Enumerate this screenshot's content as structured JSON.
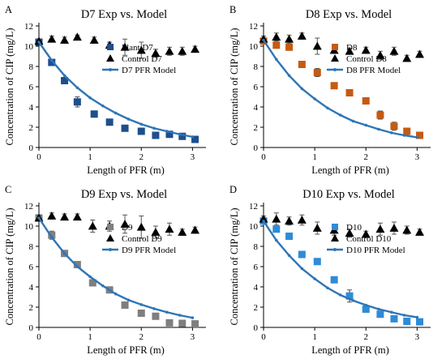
{
  "chart_data": [
    {
      "type": "scatter",
      "panel_letter": "A",
      "title": "D7 Exp vs. Model",
      "xlabel": "Length of PFR (m)",
      "ylabel": "Concentration of CIP (mg/L)",
      "xlim": [
        0,
        3.2
      ],
      "ylim": [
        0,
        12
      ],
      "xticks": [
        0,
        1,
        2,
        3
      ],
      "yticks": [
        0,
        2,
        4,
        6,
        8,
        10,
        12
      ],
      "legend_position": "right",
      "series": [
        {
          "name": "Plant D7",
          "kind": "scatter",
          "marker": "square",
          "color": "#1f4e8c",
          "x": [
            0,
            0.25,
            0.5,
            0.75,
            1.08,
            1.38,
            1.68,
            2.0,
            2.28,
            2.55,
            2.8,
            3.05
          ],
          "y": [
            10.4,
            8.4,
            6.6,
            4.5,
            3.3,
            2.5,
            1.9,
            1.6,
            1.2,
            1.3,
            1.1,
            0.8
          ],
          "error": [
            0.2,
            0.2,
            0.2,
            0.5,
            0.2,
            0.2,
            0.2,
            0.3,
            0.2,
            0.15,
            0.15,
            0.15
          ]
        },
        {
          "name": "Control D7",
          "kind": "scatter",
          "marker": "triangle",
          "color": "#000000",
          "x": [
            0,
            0.25,
            0.5,
            0.75,
            1.08,
            1.38,
            1.68,
            2.0,
            2.28,
            2.55,
            2.8,
            3.05
          ],
          "y": [
            10.5,
            10.7,
            10.6,
            10.9,
            10.6,
            10.1,
            9.9,
            9.6,
            9.3,
            9.5,
            9.5,
            9.7
          ],
          "error": [
            0.2,
            0.3,
            0.3,
            0.2,
            0.3,
            0.3,
            0.8,
            0.8,
            0.4,
            0.4,
            0.4,
            0.3
          ]
        },
        {
          "name": "D7 PFR Model",
          "kind": "line",
          "color": "#2e75b6",
          "marker": "dot",
          "x": [
            0,
            0.25,
            0.5,
            0.75,
            1.0,
            1.25,
            1.5,
            1.75,
            2.0,
            2.25,
            2.5,
            2.75,
            3.0
          ],
          "y": [
            10.4,
            8.6,
            7.1,
            5.9,
            4.9,
            4.1,
            3.4,
            2.8,
            2.3,
            1.9,
            1.6,
            1.3,
            1.05
          ]
        }
      ]
    },
    {
      "type": "scatter",
      "panel_letter": "B",
      "title": "D8 Exp vs. Model",
      "xlabel": "Length of PFR (m)",
      "ylabel": "Concentration of CIP (mg/L)",
      "xlim": [
        0,
        3.2
      ],
      "ylim": [
        0,
        12
      ],
      "xticks": [
        0,
        1,
        2,
        3
      ],
      "yticks": [
        0,
        2,
        4,
        6,
        8,
        10,
        12
      ],
      "legend_position": "right",
      "series": [
        {
          "name": "D8",
          "kind": "scatter",
          "marker": "square",
          "color": "#c55a11",
          "x": [
            0,
            0.25,
            0.5,
            0.75,
            1.05,
            1.38,
            1.68,
            2.0,
            2.28,
            2.55,
            2.8,
            3.05
          ],
          "y": [
            10.5,
            10.1,
            9.9,
            8.2,
            7.4,
            6.1,
            5.4,
            4.6,
            3.2,
            2.1,
            1.6,
            1.2
          ],
          "error": [
            0.3,
            0.2,
            0.2,
            0.2,
            0.4,
            0.2,
            0.2,
            0.2,
            0.4,
            0.4,
            0.3,
            0.3
          ]
        },
        {
          "name": "Control D8",
          "kind": "scatter",
          "marker": "triangle",
          "color": "#000000",
          "x": [
            0,
            0.25,
            0.5,
            0.75,
            1.05,
            1.38,
            1.68,
            2.0,
            2.28,
            2.55,
            2.8,
            3.05
          ],
          "y": [
            10.7,
            10.9,
            10.7,
            11.0,
            10.0,
            9.6,
            9.5,
            9.6,
            9.1,
            9.5,
            8.8,
            9.2
          ],
          "error": [
            0.3,
            0.4,
            0.4,
            0.3,
            0.8,
            0.3,
            0.3,
            0.3,
            0.4,
            0.4,
            0.3,
            0.3
          ]
        },
        {
          "name": "D8 PFR Model",
          "kind": "line",
          "color": "#2e75b6",
          "marker": "dot",
          "x": [
            0,
            0.25,
            0.5,
            0.75,
            1.0,
            1.25,
            1.5,
            1.75,
            2.0,
            2.25,
            2.5,
            2.75,
            3.0
          ],
          "y": [
            10.6,
            8.7,
            7.1,
            5.8,
            4.8,
            3.9,
            3.2,
            2.6,
            2.2,
            1.8,
            1.45,
            1.2,
            1.0
          ]
        }
      ]
    },
    {
      "type": "scatter",
      "panel_letter": "C",
      "title": "D9 Exp vs. Model",
      "xlabel": "Length of PFR (m)",
      "ylabel": "Concentration of CIP (mg/L)",
      "xlim": [
        0,
        3.2
      ],
      "ylim": [
        0,
        12
      ],
      "xticks": [
        0,
        1,
        2,
        3
      ],
      "yticks": [
        0,
        2,
        4,
        6,
        8,
        10,
        12
      ],
      "legend_position": "right",
      "series": [
        {
          "name": "D9",
          "kind": "scatter",
          "marker": "square",
          "color": "#7f7f7f",
          "x": [
            0,
            0.25,
            0.5,
            0.75,
            1.05,
            1.38,
            1.68,
            2.0,
            2.28,
            2.55,
            2.8,
            3.05
          ],
          "y": [
            10.8,
            9.1,
            7.3,
            6.2,
            4.4,
            3.7,
            2.2,
            1.4,
            1.1,
            0.45,
            0.4,
            0.35
          ],
          "error": [
            0.3,
            0.4,
            0.2,
            0.2,
            0.3,
            0.3,
            0.2,
            0.2,
            0.2,
            0.15,
            0.15,
            0.15
          ]
        },
        {
          "name": "Control D9",
          "kind": "scatter",
          "marker": "triangle",
          "color": "#000000",
          "x": [
            0,
            0.25,
            0.5,
            0.75,
            1.05,
            1.38,
            1.68,
            2.0,
            2.28,
            2.55,
            2.8,
            3.05
          ],
          "y": [
            10.8,
            11.0,
            10.9,
            10.9,
            10.0,
            10.0,
            10.2,
            9.9,
            9.4,
            9.7,
            9.4,
            9.6
          ],
          "error": [
            0.3,
            0.3,
            0.3,
            0.3,
            0.6,
            0.5,
            0.9,
            1.1,
            0.6,
            0.6,
            0.3,
            0.3
          ]
        },
        {
          "name": "D9 PFR Model",
          "kind": "line",
          "color": "#2e75b6",
          "marker": "dot",
          "x": [
            0,
            0.25,
            0.5,
            0.75,
            1.0,
            1.25,
            1.5,
            1.75,
            2.0,
            2.25,
            2.5,
            2.75,
            3.0
          ],
          "y": [
            10.8,
            8.9,
            7.3,
            6.0,
            5.0,
            4.1,
            3.3,
            2.7,
            2.25,
            1.85,
            1.5,
            1.2,
            0.95
          ]
        }
      ]
    },
    {
      "type": "scatter",
      "panel_letter": "D",
      "title": "D10 Exp vs. Model",
      "xlabel": "Length of PFR (m)",
      "ylabel": "Concentration of CIP (mg/L)",
      "xlim": [
        0,
        3.2
      ],
      "ylim": [
        0,
        12
      ],
      "xticks": [
        0,
        1,
        2,
        3
      ],
      "yticks": [
        0,
        2,
        4,
        6,
        8,
        10,
        12
      ],
      "legend_position": "right",
      "series": [
        {
          "name": "D10",
          "kind": "scatter",
          "marker": "square",
          "color": "#2e8bd8",
          "x": [
            0,
            0.25,
            0.5,
            0.75,
            1.05,
            1.38,
            1.68,
            2.0,
            2.28,
            2.55,
            2.8,
            3.05
          ],
          "y": [
            10.5,
            9.7,
            9.0,
            7.2,
            6.5,
            4.7,
            3.1,
            1.8,
            1.3,
            0.85,
            0.6,
            0.55
          ],
          "error": [
            0.2,
            0.2,
            0.2,
            0.2,
            0.2,
            0.3,
            0.6,
            0.3,
            0.2,
            0.2,
            0.15,
            0.15
          ]
        },
        {
          "name": "Control D10",
          "kind": "scatter",
          "marker": "triangle",
          "color": "#000000",
          "x": [
            0,
            0.25,
            0.5,
            0.75,
            1.05,
            1.38,
            1.68,
            2.0,
            2.28,
            2.55,
            2.8,
            3.05
          ],
          "y": [
            10.7,
            10.7,
            10.5,
            10.6,
            9.8,
            9.6,
            9.3,
            9.2,
            9.7,
            9.8,
            9.6,
            9.4
          ],
          "error": [
            0.3,
            0.6,
            0.4,
            0.5,
            0.6,
            0.5,
            0.4,
            0.3,
            0.6,
            0.6,
            0.4,
            0.3
          ]
        },
        {
          "name": "D10 PFR Model",
          "kind": "line",
          "color": "#2e75b6",
          "marker": "dot",
          "x": [
            0,
            0.25,
            0.5,
            0.75,
            1.0,
            1.25,
            1.5,
            1.75,
            2.0,
            2.25,
            2.5,
            2.75,
            3.0
          ],
          "y": [
            10.5,
            8.6,
            7.1,
            5.8,
            4.8,
            3.9,
            3.2,
            2.65,
            2.2,
            1.8,
            1.5,
            1.2,
            1.0
          ]
        }
      ]
    }
  ]
}
